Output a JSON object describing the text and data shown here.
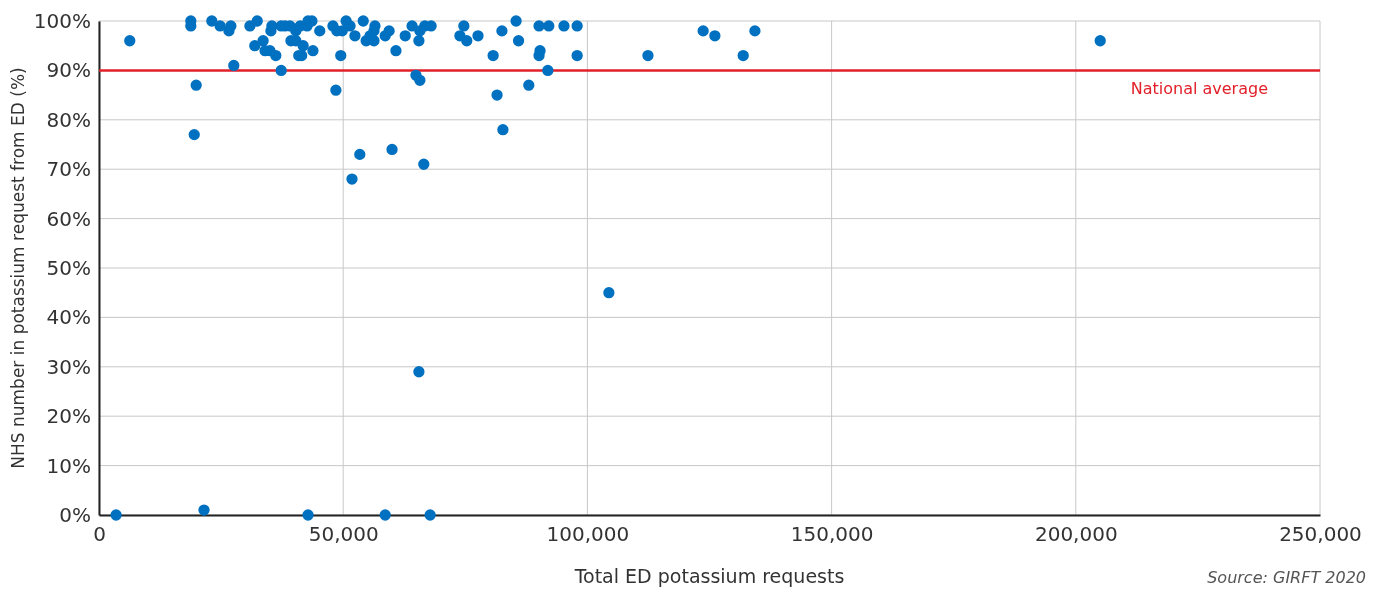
{
  "chart_data": {
    "type": "scatter",
    "xlabel": "Total ED potassium requests",
    "ylabel": "NHS number in potassium request from ED (%)",
    "x": [
      6300,
      18800,
      18800,
      19900,
      19500,
      23100,
      24800,
      26600,
      27000,
      27600,
      30900,
      32400,
      31900,
      33600,
      34000,
      35000,
      35200,
      35400,
      36200,
      37300,
      38100,
      39100,
      37300,
      39300,
      40300,
      40300,
      41200,
      40900,
      41500,
      41800,
      42600,
      42800,
      43600,
      43800,
      45200,
      47900,
      48500,
      48700,
      49500,
      49800,
      50600,
      51400,
      51800,
      52400,
      53400,
      54100,
      54700,
      55500,
      56300,
      56300,
      56500,
      58600,
      59400,
      60000,
      60800,
      62700,
      64100,
      64900,
      65700,
      65500,
      65500,
      65700,
      66500,
      66700,
      68000,
      73900,
      74700,
      75300,
      77600,
      80700,
      81500,
      82500,
      82700,
      85400,
      85900,
      88000,
      90100,
      90300,
      90100,
      91900,
      92100,
      95200,
      97900,
      97900,
      104400,
      112400,
      123700,
      126100,
      131900,
      134300,
      205000,
      3500,
      21500,
      42800,
      58600,
      67800
    ],
    "series": [
      {
        "color": "#0070c0",
        "values": [
          96,
          100,
          99,
          87,
          77,
          100,
          99,
          98,
          99,
          91,
          99,
          100,
          95,
          96,
          94,
          94,
          98,
          99,
          93,
          99,
          99,
          99,
          90,
          96,
          96,
          98,
          99,
          93,
          93,
          95,
          99,
          100,
          100,
          94,
          98,
          99,
          86,
          98,
          93,
          98,
          100,
          99,
          68,
          97,
          73,
          100,
          96,
          97,
          96,
          98,
          99,
          97,
          98,
          74,
          94,
          97,
          99,
          89,
          88,
          96,
          29,
          98,
          71,
          99,
          99,
          97,
          99,
          96,
          97,
          93,
          85,
          98,
          78,
          100,
          96,
          87,
          99,
          94,
          93,
          90,
          99,
          99,
          99,
          93,
          45,
          93,
          98,
          97,
          93,
          98,
          96,
          0,
          1,
          0,
          0,
          0
        ]
      }
    ],
    "xlim": [
      0,
      250000
    ],
    "ylim": [
      0,
      100
    ],
    "xticks": [
      0,
      {
        "value": 50000,
        "label": "50,000"
      },
      {
        "value": 100000,
        "label": "100,000"
      },
      {
        "value": 150000,
        "label": "150,000"
      },
      {
        "value": 200000,
        "label": "200,000"
      },
      {
        "value": 250000,
        "label": "250,000"
      }
    ],
    "yticks": [
      {
        "value": 0,
        "label": "0%"
      },
      {
        "value": 10,
        "label": "10%"
      },
      {
        "value": 20,
        "label": "20%"
      },
      {
        "value": 30,
        "label": "30%"
      },
      {
        "value": 40,
        "label": "40%"
      },
      {
        "value": 50,
        "label": "50%"
      },
      {
        "value": 60,
        "label": "60%"
      },
      {
        "value": 70,
        "label": "70%"
      },
      {
        "value": 80,
        "label": "80%"
      },
      {
        "value": 90,
        "label": "90%"
      },
      {
        "value": 100,
        "label": "100%"
      }
    ],
    "grid": true,
    "marker": "circle",
    "ref_lines": [
      {
        "axis": "y",
        "value": 90,
        "label": "National average",
        "color": "#e3202a"
      }
    ],
    "annotations": [
      "Source: GIRFT 2020"
    ]
  }
}
